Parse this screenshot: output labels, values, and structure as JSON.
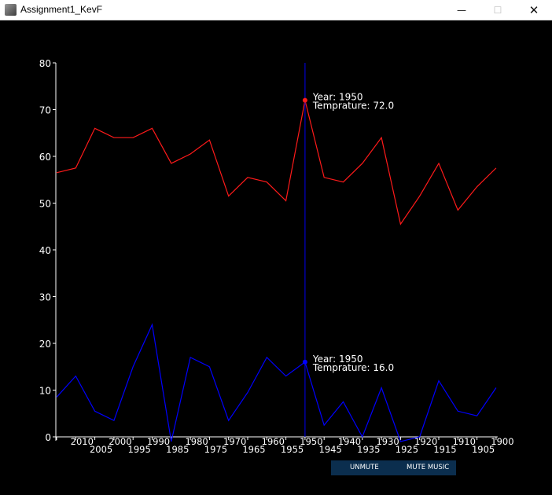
{
  "window": {
    "title": "Assignment1_KevF",
    "minimize_glyph": "—",
    "maximize_glyph": "☐",
    "close_glyph": "✕"
  },
  "controls": {
    "unmute_label": "UNMUTE",
    "mute_music_label": "MUTE MUSIC",
    "bar_color": "#0b2e4e"
  },
  "chart_data": {
    "type": "line",
    "title": "",
    "xlabel": "",
    "ylabel": "",
    "ylim": [
      0,
      80
    ],
    "yticks": [
      0,
      10,
      20,
      30,
      40,
      50,
      60,
      70,
      80
    ],
    "x": [
      2015,
      2010,
      2005,
      2000,
      1995,
      1990,
      1985,
      1980,
      1975,
      1970,
      1965,
      1960,
      1955,
      1950,
      1945,
      1940,
      1935,
      1930,
      1925,
      1920,
      1915,
      1910,
      1905,
      1900
    ],
    "xticks_upper": [
      2010,
      2000,
      1990,
      1980,
      1970,
      1960,
      1950,
      1940,
      1930,
      1920,
      1910,
      1900
    ],
    "xticks_lower": [
      2005,
      1995,
      1985,
      1975,
      1965,
      1955,
      1945,
      1935,
      1925,
      1915,
      1905
    ],
    "series": [
      {
        "color": "#ff1a1a",
        "values": [
          56.5,
          57.5,
          66,
          64,
          64,
          66,
          58.5,
          60.5,
          63.5,
          51.5,
          55.5,
          54.5,
          50.5,
          72,
          55.5,
          54.5,
          58.5,
          64,
          45.5,
          51.5,
          58.5,
          48.5,
          53.5,
          57.5
        ]
      },
      {
        "color": "#0000ff",
        "values": [
          8.5,
          13,
          5.5,
          3.5,
          15,
          24,
          -1,
          17,
          15,
          3.5,
          9.5,
          17,
          13,
          16,
          2.5,
          7.5,
          0,
          10.5,
          -1,
          0,
          12,
          5.5,
          4.5,
          10.5
        ]
      }
    ],
    "cursor": {
      "year": 1950,
      "line_color": "#0000c8",
      "labels": [
        {
          "year_text": "Year: 1950",
          "temp_text": "Temprature: 72.0",
          "value": 72.0,
          "dot_color": "#ff1a1a"
        },
        {
          "year_text": "Year: 1950",
          "temp_text": "Temprature: 16.0",
          "value": 16.0,
          "dot_color": "#0000ff"
        }
      ]
    },
    "grid": false,
    "legend": "none"
  }
}
